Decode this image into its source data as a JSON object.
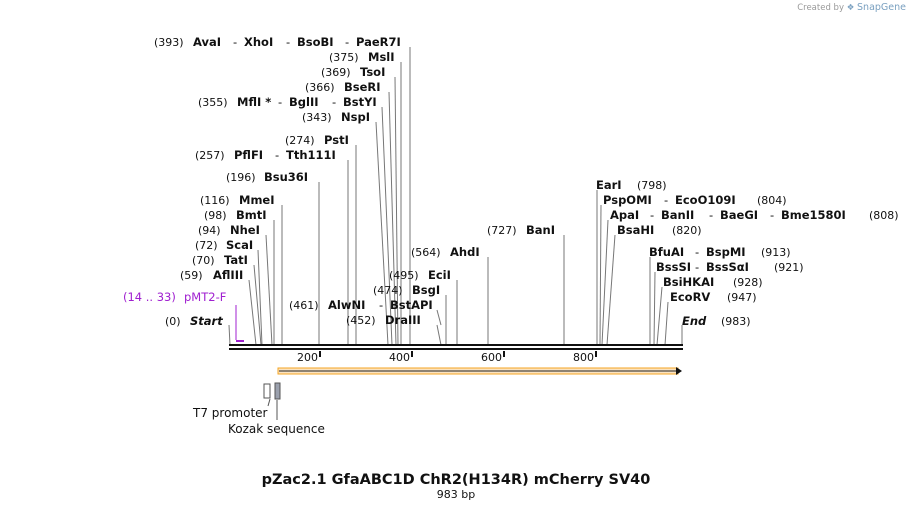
{
  "credit": {
    "prefix": "Created by",
    "brand": "SnapGene",
    "icon": "snapgene-logo-icon"
  },
  "map": {
    "title": "pZac2.1 GfaABC1D ChR2(H134R) mCherry SV40",
    "length_label": "983 bp",
    "length": 983
  },
  "ruler": {
    "ticks": [
      "200",
      "400",
      "600",
      "800"
    ]
  },
  "ends": {
    "start_pos": "(0)",
    "start_label": "Start",
    "end_label": "End",
    "end_pos": "(983)"
  },
  "primer": {
    "range": "(14 .. 33)",
    "name": "pMT2-F",
    "color": "#a020d0"
  },
  "features": {
    "t7": "T7 promoter",
    "kozak": "Kozak sequence",
    "orf_color": "#f5a623"
  },
  "sites": [
    {
      "pos": "(393)",
      "names": [
        "AvaI",
        "XhoI",
        "BsoBI",
        "PaeR7I"
      ]
    },
    {
      "pos": "(375)",
      "names": [
        "MslI"
      ]
    },
    {
      "pos": "(369)",
      "names": [
        "TsoI"
      ]
    },
    {
      "pos": "(366)",
      "names": [
        "BseRI"
      ]
    },
    {
      "pos": "(355)",
      "names": [
        "MflI *",
        "BglII",
        "BstYI"
      ]
    },
    {
      "pos": "(343)",
      "names": [
        "NspI"
      ]
    },
    {
      "pos": "(274)",
      "names": [
        "PstI"
      ]
    },
    {
      "pos": "(257)",
      "names": [
        "PflFI",
        "Tth111I"
      ]
    },
    {
      "pos": "(196)",
      "names": [
        "Bsu36I"
      ]
    },
    {
      "pos": "(116)",
      "names": [
        "MmeI"
      ]
    },
    {
      "pos": "(98)",
      "names": [
        "BmtI"
      ]
    },
    {
      "pos": "(94)",
      "names": [
        "NheI"
      ]
    },
    {
      "pos": "(72)",
      "names": [
        "ScaI"
      ]
    },
    {
      "pos": "(70)",
      "names": [
        "TatI"
      ]
    },
    {
      "pos": "(59)",
      "names": [
        "AflIII"
      ]
    },
    {
      "pos": "(461)",
      "names": [
        "AlwNI",
        "BstAPI"
      ]
    },
    {
      "pos": "(452)",
      "names": [
        "DraIII"
      ]
    },
    {
      "pos": "(474)",
      "names": [
        "BsgI"
      ]
    },
    {
      "pos": "(495)",
      "names": [
        "EciI"
      ]
    },
    {
      "pos": "(564)",
      "names": [
        "AhdI"
      ]
    },
    {
      "pos": "(727)",
      "names": [
        "BanI"
      ]
    },
    {
      "pos": "(798)",
      "names": [
        "EarI"
      ]
    },
    {
      "pos": "(804)",
      "names": [
        "PspOMI",
        "EcoO109I"
      ]
    },
    {
      "pos": "(808)",
      "names": [
        "ApaI",
        "BanII",
        "BaeGI",
        "Bme1580I"
      ]
    },
    {
      "pos": "(820)",
      "names": [
        "BsaHI"
      ]
    },
    {
      "pos": "(913)",
      "names": [
        "BfuAI",
        "BspMI"
      ]
    },
    {
      "pos": "(921)",
      "names": [
        "BssSI",
        "BssSαI"
      ]
    },
    {
      "pos": "(928)",
      "names": [
        "BsiHKAI"
      ]
    },
    {
      "pos": "(947)",
      "names": [
        "EcoRV"
      ]
    }
  ]
}
